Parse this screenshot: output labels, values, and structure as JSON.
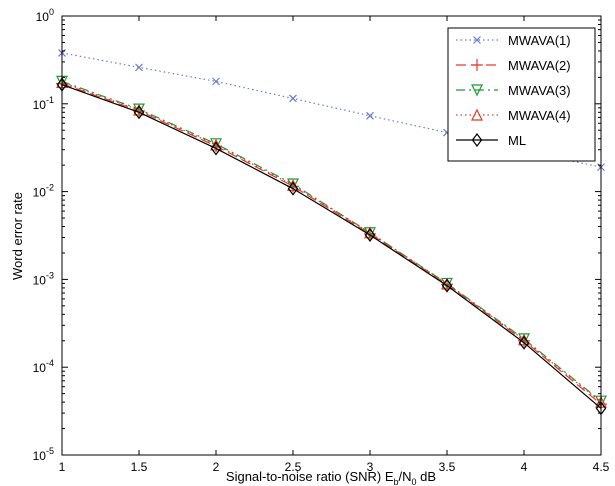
{
  "chart_data": {
    "type": "line",
    "title": "",
    "xlabel_prefix": "Signal-to-noise ratio (SNR) E",
    "xlabel_sub1": "b",
    "xlabel_mid": "/N",
    "xlabel_sub2": "0",
    "xlabel_suffix": " dB",
    "ylabel": "Word error rate",
    "xscale": "linear",
    "yscale": "log",
    "xlim": [
      1,
      4.5
    ],
    "ylim": [
      1e-05,
      1
    ],
    "grid": false,
    "legend_position": "top-right",
    "xticks": [
      "1",
      "1.5",
      "2",
      "2.5",
      "3",
      "3.5",
      "4",
      "4.5"
    ],
    "yticks": [
      {
        "base": "10",
        "exp": "0"
      },
      {
        "base": "10",
        "exp": "-1"
      },
      {
        "base": "10",
        "exp": "-2"
      },
      {
        "base": "10",
        "exp": "-3"
      },
      {
        "base": "10",
        "exp": "-4"
      },
      {
        "base": "10",
        "exp": "-5"
      }
    ],
    "x": [
      1,
      1.5,
      2,
      2.5,
      3,
      3.5,
      4,
      4.5
    ],
    "series": [
      {
        "name": "MWAVA(1)",
        "color": "#6b7bd6",
        "dash": "1.5,3",
        "marker": "x",
        "values": [
          0.38,
          0.26,
          0.18,
          0.115,
          0.073,
          0.047,
          0.029,
          0.019
        ]
      },
      {
        "name": "MWAVA(2)",
        "color": "#e8392c",
        "dash": "10,5",
        "marker": "plus",
        "values": [
          0.17,
          0.083,
          0.033,
          0.0115,
          0.0033,
          0.00088,
          0.0002,
          3.8e-05
        ]
      },
      {
        "name": "MWAVA(3)",
        "color": "#1f9a36",
        "dash": "9,4,2,4",
        "marker": "triangle-down",
        "values": [
          0.18,
          0.087,
          0.035,
          0.0122,
          0.0034,
          0.0009,
          0.00021,
          4.1e-05
        ]
      },
      {
        "name": "MWAVA(4)",
        "color": "#e8392c",
        "dash": "1.5,3",
        "marker": "triangle-up",
        "values": [
          0.175,
          0.085,
          0.034,
          0.0118,
          0.0034,
          0.00089,
          0.000205,
          4e-05
        ]
      },
      {
        "name": "ML",
        "color": "#000000",
        "dash": "",
        "marker": "diamond",
        "values": [
          0.165,
          0.08,
          0.031,
          0.0108,
          0.0032,
          0.00085,
          0.00019,
          3.4e-05
        ]
      }
    ]
  }
}
